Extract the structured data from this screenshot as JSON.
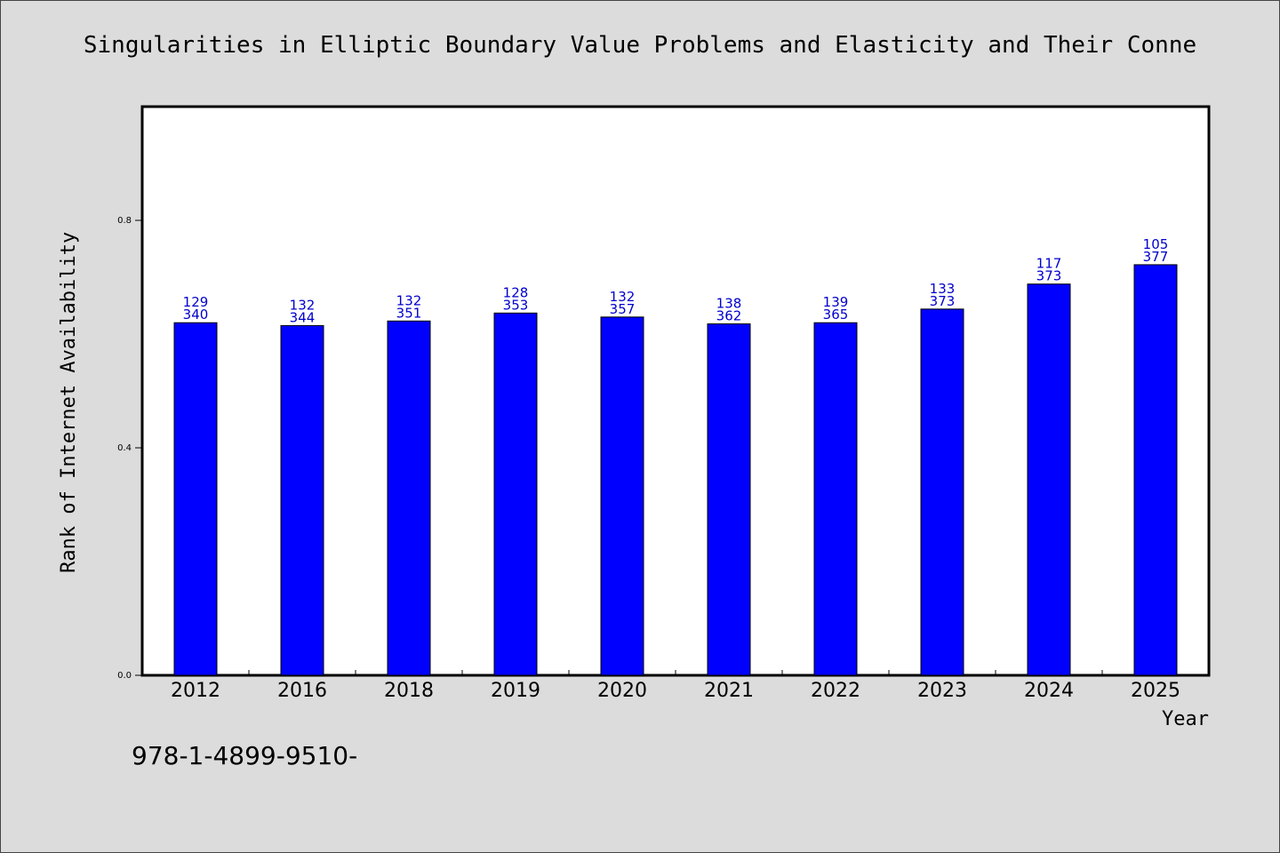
{
  "title": "Singularities in Elliptic Boundary Value Problems and Elasticity and Their Conne",
  "footer_text": "978-1-4899-9510-",
  "colors": {
    "bar_fill": "#0000ff",
    "data_label": "#0000cc",
    "background": "#dcdcdc",
    "plot_area": "#ffffff"
  },
  "chart_data": {
    "type": "bar",
    "title": "Singularities in Elliptic Boundary Value Problems and Elasticity and Their Conne",
    "xlabel": "Year",
    "ylabel": "Rank of Internet Availability",
    "categories": [
      "2012",
      "2016",
      "2018",
      "2019",
      "2020",
      "2021",
      "2022",
      "2023",
      "2024",
      "2025"
    ],
    "values": [
      0.62,
      0.615,
      0.623,
      0.637,
      0.63,
      0.618,
      0.62,
      0.644,
      0.688,
      0.722
    ],
    "labels_top": [
      "129",
      "132",
      "132",
      "128",
      "132",
      "138",
      "139",
      "133",
      "117",
      "105"
    ],
    "labels_bottom": [
      "340",
      "344",
      "351",
      "353",
      "357",
      "362",
      "365",
      "373",
      "373",
      "377"
    ],
    "yticks": [
      0.0,
      0.4,
      0.8
    ],
    "ytick_labels": [
      "0.0",
      "0.4",
      "0.8"
    ],
    "ylim": [
      0,
      1.0
    ],
    "grid": false,
    "legend": "none"
  }
}
